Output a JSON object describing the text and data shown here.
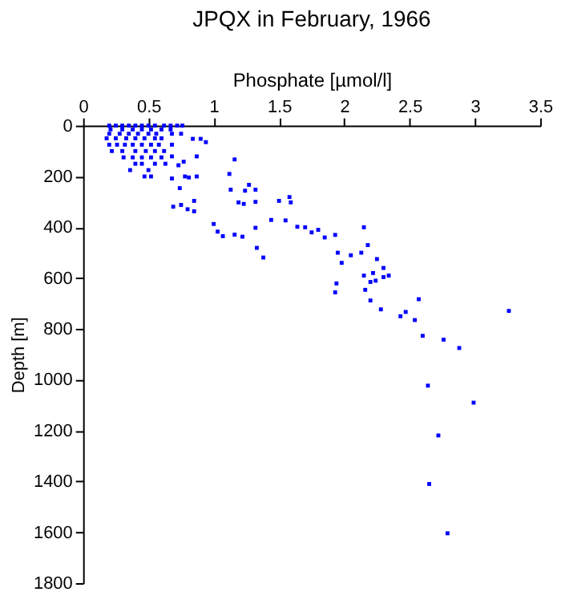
{
  "chart_data": {
    "type": "scatter",
    "title": "JPQX in February, 1966",
    "xlabel": "Phosphate [µmol/l]",
    "ylabel": "Depth [m]",
    "x": [
      0.2,
      0.25,
      0.3,
      0.35,
      0.4,
      0.45,
      0.5,
      0.55,
      0.62,
      0.67,
      0.72,
      0.76,
      0.21,
      0.3,
      0.38,
      0.45,
      0.52,
      0.6,
      0.67,
      0.2,
      0.28,
      0.35,
      0.42,
      0.5,
      0.56,
      0.68,
      0.75,
      0.18,
      0.25,
      0.33,
      0.4,
      0.47,
      0.55,
      0.6,
      0.2,
      0.26,
      0.32,
      0.38,
      0.45,
      0.52,
      0.58,
      0.68,
      0.22,
      0.3,
      0.4,
      0.48,
      0.55,
      0.62,
      0.31,
      0.38,
      0.45,
      0.52,
      0.6,
      0.4,
      0.45,
      0.55,
      0.63,
      0.36,
      0.5,
      0.47,
      0.52,
      0.84,
      0.9,
      0.94,
      0.87,
      0.77,
      0.73,
      0.68,
      0.68,
      0.78,
      0.81,
      0.87,
      0.74,
      0.69,
      0.75,
      0.8,
      0.85,
      0.85,
      1.16,
      1.12,
      1.13,
      1.27,
      1.24,
      1.32,
      1.19,
      1.23,
      1.32,
      1.0,
      1.03,
      1.07,
      1.16,
      1.22,
      1.32,
      1.33,
      1.38,
      1.5,
      1.44,
      1.55,
      1.58,
      1.59,
      1.64,
      1.7,
      1.75,
      1.8,
      1.85,
      1.93,
      2.15,
      2.18,
      2.13,
      1.95,
      2.05,
      2.25,
      2.3,
      2.22,
      1.98,
      2.15,
      2.2,
      2.24,
      2.3,
      2.34,
      1.94,
      1.93,
      2.16,
      2.2,
      2.28,
      2.43,
      2.47,
      2.54,
      2.57,
      2.6,
      2.76,
      2.88,
      3.26,
      2.64,
      2.99,
      2.72,
      2.65,
      2.79
    ],
    "values": [
      0,
      0,
      0,
      0,
      0,
      0,
      0,
      0,
      0,
      0,
      0,
      0,
      15,
      15,
      15,
      15,
      15,
      15,
      15,
      32,
      32,
      32,
      32,
      32,
      32,
      32,
      32,
      50,
      50,
      50,
      50,
      50,
      50,
      50,
      75,
      75,
      75,
      75,
      75,
      75,
      75,
      75,
      100,
      100,
      100,
      100,
      100,
      100,
      125,
      125,
      125,
      125,
      125,
      150,
      150,
      150,
      150,
      175,
      175,
      200,
      200,
      52,
      52,
      65,
      121,
      142,
      156,
      121,
      208,
      200,
      204,
      200,
      246,
      319,
      312,
      329,
      296,
      337,
      133,
      190,
      252,
      233,
      256,
      252,
      302,
      308,
      300,
      387,
      417,
      435,
      429,
      437,
      402,
      481,
      519,
      296,
      371,
      373,
      281,
      302,
      398,
      400,
      420,
      410,
      440,
      430,
      400,
      470,
      500,
      500,
      510,
      525,
      560,
      580,
      540,
      590,
      615,
      610,
      596,
      590,
      621,
      656,
      646,
      688,
      723,
      750,
      733,
      765,
      683,
      827,
      842,
      875,
      729,
      1023,
      1090,
      1219,
      1410,
      1604
    ],
    "color": "#0000ff",
    "marker": "square",
    "xlim": [
      0,
      3.5
    ],
    "xticks": [
      0,
      0.5,
      1,
      1.5,
      2,
      2.5,
      3,
      3.5
    ],
    "ylim": [
      1800,
      0
    ],
    "yticks": [
      0,
      200,
      400,
      600,
      800,
      1000,
      1200,
      1400,
      1600,
      1800
    ],
    "grid": false
  }
}
